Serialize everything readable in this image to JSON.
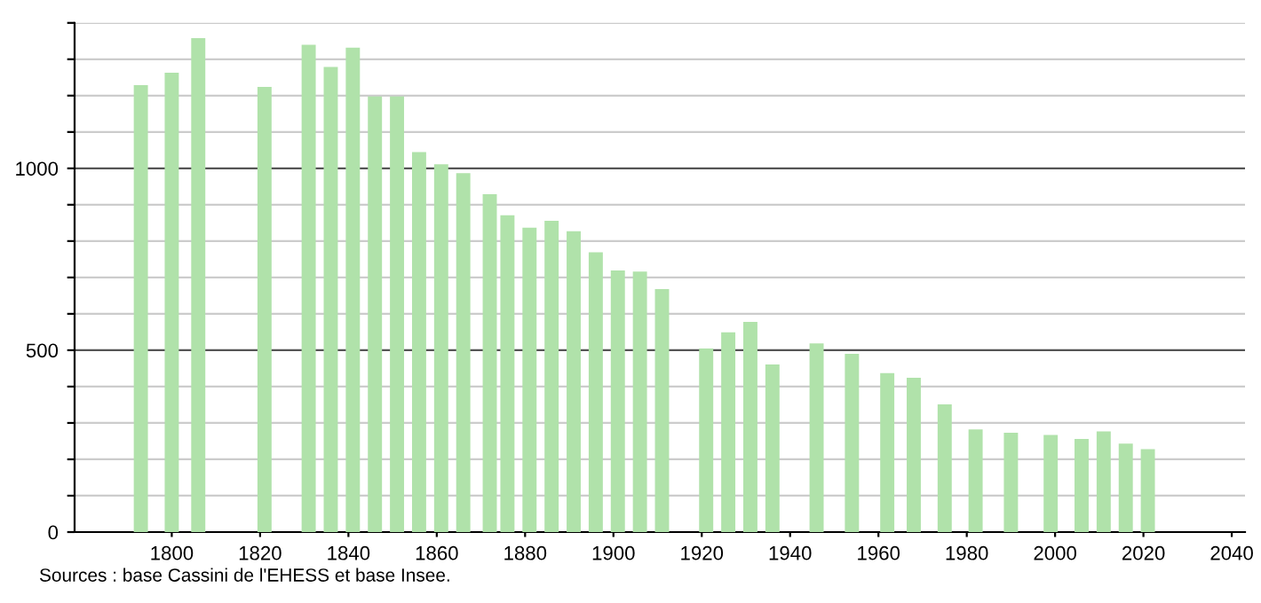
{
  "chart_data": {
    "type": "bar",
    "x": [
      1793,
      1800,
      1806,
      1821,
      1831,
      1836,
      1841,
      1846,
      1851,
      1856,
      1861,
      1866,
      1872,
      1876,
      1881,
      1886,
      1891,
      1896,
      1901,
      1906,
      1911,
      1921,
      1926,
      1931,
      1936,
      1946,
      1954,
      1962,
      1968,
      1975,
      1982,
      1990,
      1999,
      2006,
      2011,
      2016,
      2021
    ],
    "values": [
      1229,
      1263,
      1358,
      1224,
      1340,
      1279,
      1332,
      1198,
      1198,
      1045,
      1011,
      987,
      929,
      871,
      837,
      856,
      827,
      769,
      719,
      716,
      668,
      505,
      549,
      578,
      461,
      519,
      490,
      437,
      424,
      351,
      282,
      273,
      267,
      256,
      277,
      243,
      228
    ],
    "color": "#b0e2aa",
    "xlim": [
      1778,
      2043
    ],
    "xticks": [
      1800,
      1820,
      1840,
      1860,
      1880,
      1900,
      1920,
      1940,
      1960,
      1980,
      2000,
      2020,
      2040
    ],
    "ylim": [
      0,
      1400
    ],
    "yticks": [
      0,
      {
        "value": 100,
        "label": null
      },
      {
        "value": 200,
        "label": null
      },
      {
        "value": 300,
        "label": null
      },
      {
        "value": 400,
        "label": null
      },
      500,
      {
        "value": 600,
        "label": null
      },
      {
        "value": 700,
        "label": null
      },
      {
        "value": 800,
        "label": null
      },
      {
        "value": 900,
        "label": null
      },
      1000,
      {
        "value": 1100,
        "label": null
      },
      {
        "value": 1200,
        "label": null
      },
      {
        "value": 1300,
        "label": null
      },
      {
        "value": 1400,
        "label": null
      }
    ],
    "grid": "y",
    "annotations": [
      "Sources : base Cassini de l'EHESS et base Insee."
    ]
  }
}
